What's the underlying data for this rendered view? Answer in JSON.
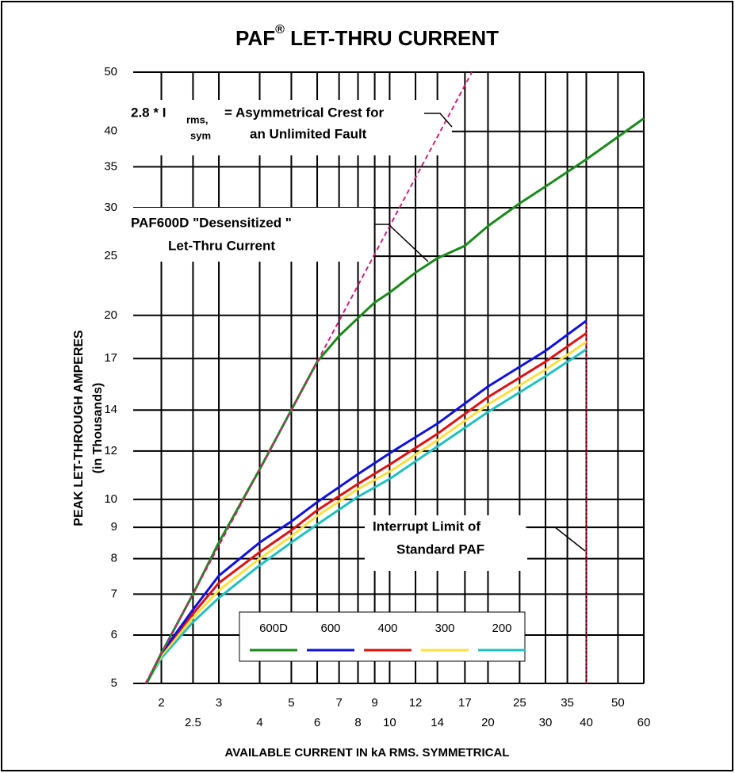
{
  "chart_data": {
    "type": "line",
    "title_parts": [
      "PAF",
      "®",
      " LET-THRU CURRENT"
    ],
    "xlabel": "AVAILABLE CURRENT IN kA RMS. SYMMETRICAL",
    "ylabel_lines": [
      "PEAK LET-THROUGH AMPERES",
      "(in Thousands)"
    ],
    "log_x": true,
    "log_y": true,
    "grid": true,
    "xlim": [
      1.64,
      60
    ],
    "ylim": [
      5,
      50
    ],
    "xticks": [
      2,
      2.5,
      3,
      4,
      5,
      6,
      7,
      8,
      9,
      10,
      12,
      14,
      17,
      20,
      25,
      30,
      35,
      40,
      50,
      60
    ],
    "yticks": [
      5,
      6,
      7,
      8,
      9,
      10,
      12,
      14,
      17,
      20,
      25,
      30,
      35,
      40,
      50
    ],
    "series": [
      {
        "name": "600D",
        "color": "#1a8a1a",
        "x": [
          1.8,
          2,
          2.5,
          3,
          4,
          5,
          6,
          7,
          8,
          9,
          10,
          12,
          14,
          17,
          20,
          25,
          30,
          40,
          60
        ],
        "values": [
          5,
          5.6,
          7,
          8.5,
          11.2,
          14,
          16.8,
          18.5,
          19.8,
          21,
          21.8,
          23.5,
          24.8,
          26,
          28,
          30.5,
          32.5,
          36,
          42
        ]
      },
      {
        "name": "600",
        "color": "#1010e0",
        "x": [
          1.8,
          2,
          2.5,
          3,
          4,
          5,
          6,
          8,
          10,
          14,
          20,
          30,
          40
        ],
        "values": [
          5,
          5.6,
          6.6,
          7.5,
          8.5,
          9.2,
          9.9,
          11,
          11.9,
          13.3,
          15.3,
          17.5,
          19.6
        ]
      },
      {
        "name": "400",
        "color": "#e01010",
        "x": [
          1.8,
          2,
          2.5,
          3,
          4,
          5,
          6,
          8,
          10,
          14,
          20,
          30,
          40
        ],
        "values": [
          5,
          5.6,
          6.5,
          7.3,
          8.2,
          8.9,
          9.6,
          10.6,
          11.4,
          12.8,
          14.7,
          16.8,
          18.7
        ]
      },
      {
        "name": "300",
        "color": "#ffe040",
        "x": [
          1.8,
          2,
          2.5,
          3,
          4,
          5,
          6,
          8,
          10,
          14,
          20,
          30,
          40
        ],
        "values": [
          5,
          5.55,
          6.4,
          7.1,
          8,
          8.7,
          9.4,
          10.4,
          11.1,
          12.5,
          14.3,
          16.3,
          18.1
        ]
      },
      {
        "name": "200",
        "color": "#20c0c0",
        "x": [
          1.8,
          2,
          2.5,
          3,
          4,
          5,
          6,
          8,
          10,
          14,
          20,
          30,
          40
        ],
        "values": [
          5,
          5.5,
          6.3,
          6.9,
          7.8,
          8.5,
          9.1,
          10.1,
          10.8,
          12.2,
          13.9,
          15.9,
          17.6
        ]
      }
    ],
    "reference": {
      "color": "#d0207a",
      "x": [
        1.786,
        17.86
      ],
      "values": [
        5,
        50
      ]
    },
    "limit": {
      "color": "#c00020",
      "x": [
        40,
        40
      ],
      "values": [
        5,
        19.6
      ]
    },
    "annotations": {
      "crest": {
        "lead": "2.8 * I",
        "sub_top": "rms,",
        "sub_bottom": "sym",
        "line1": "= Asymmetrical Crest for",
        "line2": "an Unlimited Fault"
      },
      "desens": {
        "line1": "PAF600D  \"Desensitized \"",
        "line2": "Let-Thru Current"
      },
      "interrupt": {
        "line1": "Interrupt Limit of",
        "line2": "Standard PAF"
      }
    }
  }
}
